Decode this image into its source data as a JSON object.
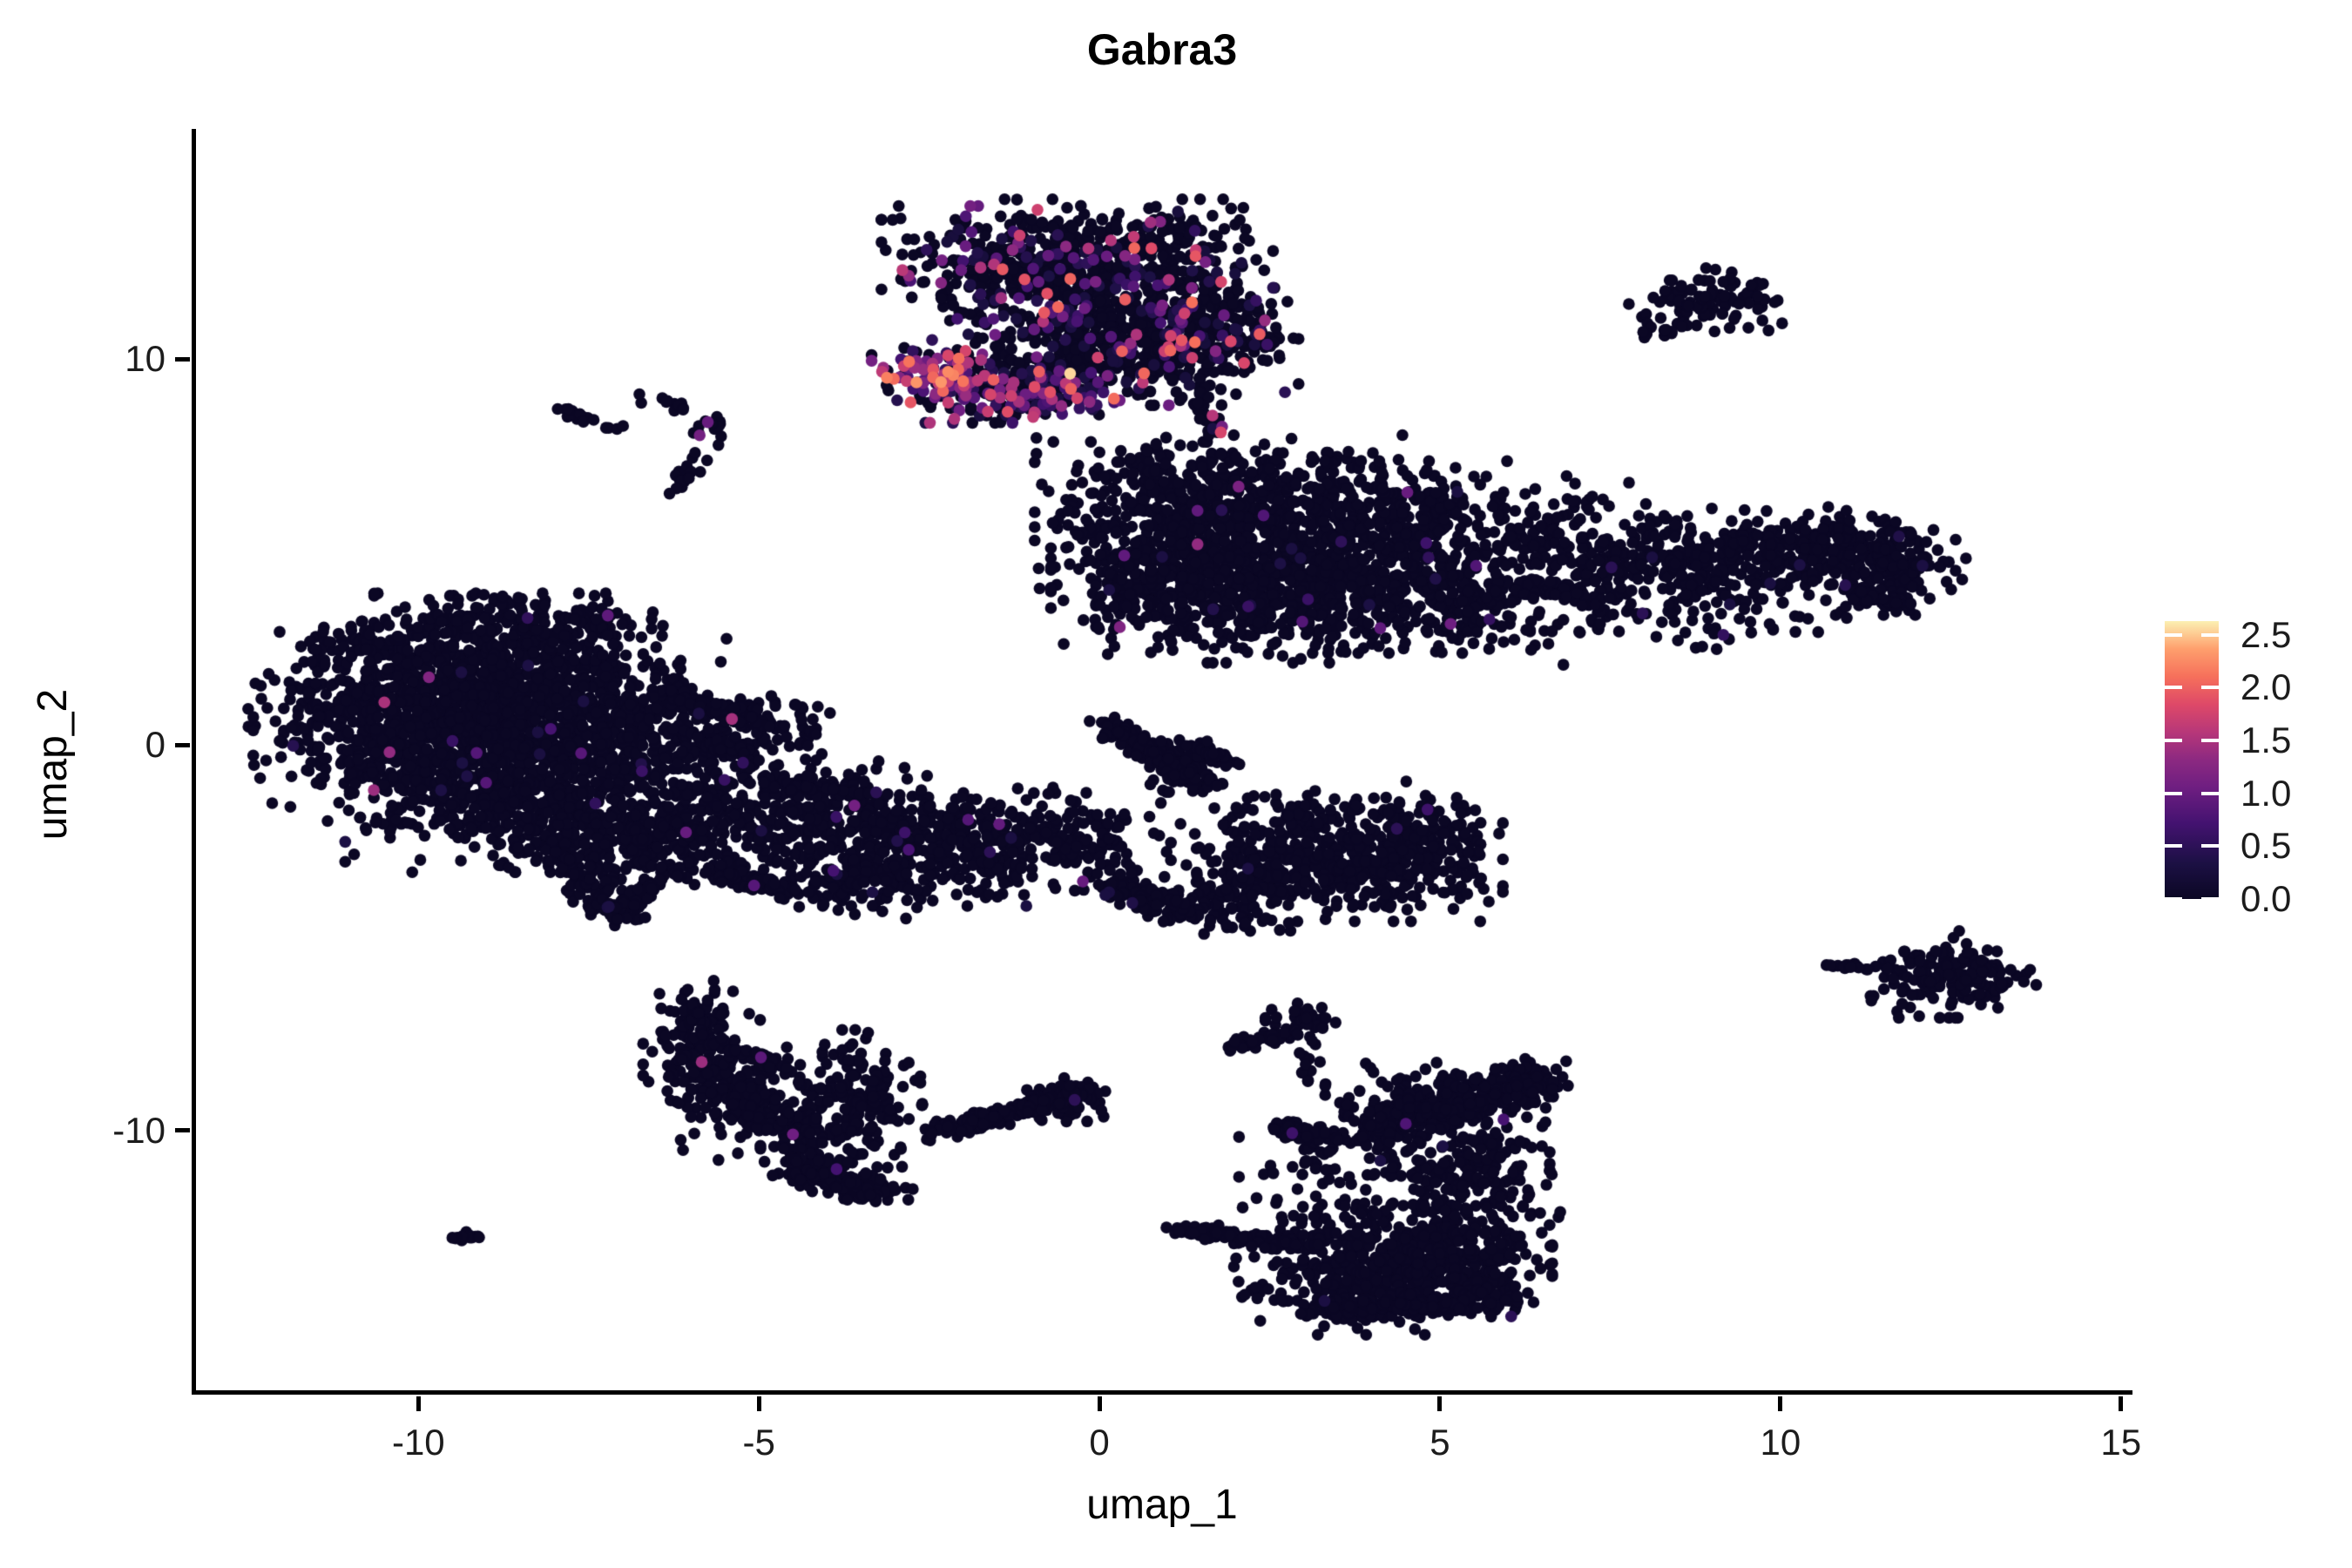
{
  "chart_data": {
    "type": "scatter",
    "title": "Gabra3",
    "xlabel": "umap_1",
    "ylabel": "umap_2",
    "x_ticks": [
      -10,
      -5,
      0,
      5,
      10,
      15
    ],
    "y_ticks": [
      -10,
      0,
      10
    ],
    "xlim": [
      -13.33,
      15.17
    ],
    "ylim": [
      -16.84,
      15.96
    ],
    "grid": false,
    "point_radius_px": 6.8,
    "legend": {
      "title": "",
      "position": "right",
      "min": 0.0,
      "max": 2.63,
      "tick_values": [
        2.5,
        2.0,
        1.5,
        1.0,
        0.5,
        0.0
      ],
      "tick_labels": [
        "2.5",
        "2.0",
        "1.5",
        "1.0",
        "0.5",
        "0.0"
      ],
      "colormap_name": "magma",
      "colormap_stops": [
        [
          0.0,
          "#0b0724"
        ],
        [
          0.13,
          "#1c1044"
        ],
        [
          0.27,
          "#431270"
        ],
        [
          0.4,
          "#6e1e81"
        ],
        [
          0.5,
          "#8c2981"
        ],
        [
          0.6,
          "#b73779"
        ],
        [
          0.7,
          "#de4968"
        ],
        [
          0.8,
          "#f6705b"
        ],
        [
          0.9,
          "#fe9f6d"
        ],
        [
          1.0,
          "#fcf0b2"
        ]
      ],
      "zero_color": "#0b0724"
    },
    "seed": 20240817,
    "clusters": [
      {
        "name": "top-middle-main",
        "colored": {
          "frac": 0.17,
          "min": 0.25,
          "max": 2.1,
          "pow": 2.6
        },
        "blobs": [
          [
            -1.4,
            12.5,
            0.8,
            0.65,
            200
          ],
          [
            0.3,
            12.9,
            1.0,
            0.55,
            220
          ],
          [
            -0.3,
            11.6,
            0.9,
            0.8,
            260
          ],
          [
            0.9,
            11.0,
            0.9,
            0.85,
            300
          ],
          [
            0.1,
            10.15,
            0.9,
            0.6,
            220
          ],
          [
            1.6,
            10.6,
            0.5,
            0.65,
            120
          ],
          [
            2.4,
            10.6,
            0.25,
            0.45,
            20
          ]
        ],
        "streaks": [
          [
            1.2,
            9.6,
            1.75,
            8.15,
            0.12,
            32
          ]
        ]
      },
      {
        "name": "top-middle-beak-hot",
        "colored": {
          "frac": 0.8,
          "min": 0.5,
          "max": 2.35,
          "pow": 1.3
        },
        "blobs": [
          [
            -2.4,
            9.75,
            0.42,
            0.33,
            90
          ]
        ]
      },
      {
        "name": "top-middle-beak-edge",
        "colored": {
          "frac": 0.5,
          "min": 0.3,
          "max": 2.0,
          "pow": 1.9
        },
        "blobs": [
          [
            -1.55,
            9.2,
            0.7,
            0.38,
            140
          ],
          [
            -0.6,
            9.05,
            0.55,
            0.33,
            90
          ]
        ]
      },
      {
        "name": "top-right-small",
        "colored": {
          "frac": 0,
          "min": 0,
          "max": 0,
          "pow": 1
        },
        "blobs": [
          [
            8.9,
            11.5,
            0.5,
            0.38,
            95
          ],
          [
            8.3,
            10.75,
            0.14,
            0.18,
            12
          ],
          [
            8.0,
            10.65,
            0.04,
            0.04,
            2
          ]
        ]
      },
      {
        "name": "right-middle-main",
        "colored": {
          "frac": 0.012,
          "min": 0.3,
          "max": 1.4,
          "pow": 2
        },
        "blobs": [
          [
            1.3,
            5.6,
            1.0,
            1.0,
            370
          ],
          [
            2.8,
            5.2,
            1.2,
            1.05,
            450
          ],
          [
            4.3,
            4.4,
            1.0,
            0.9,
            330
          ],
          [
            2.2,
            3.7,
            1.0,
            0.7,
            250
          ],
          [
            0.75,
            4.3,
            0.65,
            0.8,
            180
          ],
          [
            2.0,
            6.9,
            1.3,
            0.5,
            170
          ],
          [
            4.6,
            6.0,
            0.8,
            0.6,
            150
          ],
          [
            5.3,
            3.5,
            0.6,
            0.5,
            90
          ]
        ]
      },
      {
        "name": "right-middle-tail",
        "colored": {
          "frac": 0.008,
          "min": 0.3,
          "max": 1.2,
          "pow": 2
        },
        "blobs": [
          [
            6.3,
            4.7,
            0.8,
            0.75,
            130
          ],
          [
            7.6,
            4.4,
            0.8,
            0.65,
            120
          ],
          [
            8.8,
            4.7,
            0.7,
            0.55,
            130
          ],
          [
            9.8,
            5.0,
            0.6,
            0.5,
            110
          ],
          [
            10.8,
            5.15,
            0.6,
            0.45,
            120
          ],
          [
            11.6,
            4.6,
            0.5,
            0.55,
            150
          ],
          [
            6.9,
            5.9,
            0.5,
            0.5,
            40
          ],
          [
            7.5,
            3.2,
            1.1,
            0.5,
            40
          ],
          [
            9.3,
            3.3,
            0.8,
            0.4,
            30
          ]
        ],
        "streaks": [
          [
            11.0,
            3.95,
            11.8,
            3.55,
            0.1,
            40
          ]
        ]
      },
      {
        "name": "left-main",
        "colored": {
          "frac": 0.006,
          "min": 0.3,
          "max": 1.5,
          "pow": 2.2
        },
        "blobs": [
          [
            -9.8,
            1.5,
            1.2,
            1.05,
            400
          ],
          [
            -8.4,
            1.9,
            1.0,
            0.9,
            320
          ],
          [
            -10.4,
            0.2,
            0.9,
            1.0,
            320
          ],
          [
            -9.0,
            0.3,
            1.1,
            1.0,
            370
          ],
          [
            -7.5,
            0.8,
            0.9,
            0.9,
            280
          ],
          [
            -7.0,
            -0.3,
            0.9,
            0.8,
            220
          ],
          [
            -8.6,
            -1.5,
            1.1,
            0.8,
            290
          ],
          [
            -7.2,
            -2.2,
            0.9,
            0.7,
            200
          ],
          [
            -6.6,
            -2.6,
            0.6,
            0.5,
            90
          ],
          [
            -4.9,
            0.4,
            0.45,
            0.5,
            70
          ],
          [
            -8.9,
            3.3,
            0.6,
            0.3,
            60
          ],
          [
            -7.7,
            3.0,
            0.5,
            0.3,
            50
          ],
          [
            -10.6,
            2.6,
            0.5,
            0.35,
            70
          ]
        ],
        "streaks": [
          [
            -6.4,
            1.3,
            -5.0,
            0.6,
            0.18,
            80
          ],
          [
            -6.2,
            0.3,
            -5.2,
            -0.2,
            0.15,
            50
          ],
          [
            -7.9,
            -2.8,
            -7.1,
            -4.5,
            0.18,
            90
          ],
          [
            -7.1,
            -4.5,
            -6.3,
            -3.2,
            0.15,
            70
          ]
        ]
      },
      {
        "name": "middle-band",
        "colored": {
          "frac": 0.012,
          "min": 0.3,
          "max": 1.1,
          "pow": 2
        },
        "blobs": [
          [
            -5.3,
            -1.6,
            0.9,
            0.8,
            200
          ],
          [
            -4.0,
            -2.2,
            0.9,
            0.8,
            200
          ],
          [
            -2.7,
            -2.6,
            0.9,
            0.7,
            220
          ],
          [
            -1.4,
            -2.6,
            0.8,
            0.6,
            160
          ],
          [
            -0.3,
            -2.3,
            0.6,
            0.55,
            90
          ],
          [
            -3.4,
            -3.6,
            0.6,
            0.4,
            80
          ]
        ],
        "streaks": [
          [
            -4.8,
            -0.9,
            -3.4,
            -1.3,
            0.15,
            60
          ],
          [
            -5.6,
            -3.2,
            -4.3,
            -3.9,
            0.15,
            70
          ]
        ]
      },
      {
        "name": "center-diagonal-streak",
        "colored": {
          "frac": 0,
          "min": 0,
          "max": 0,
          "pow": 1
        },
        "blobs": [
          [
            1.1,
            -0.55,
            0.35,
            0.3,
            40
          ],
          [
            0.25,
            -2.0,
            0.12,
            0.12,
            6
          ]
        ],
        "streaks": [
          [
            0.0,
            0.65,
            1.62,
            -1.1,
            0.13,
            160
          ],
          [
            1.38,
            -0.02,
            1.85,
            -0.45,
            0.1,
            45
          ]
        ]
      },
      {
        "name": "center-right-blob",
        "colored": {
          "frac": 0.006,
          "min": 0.3,
          "max": 1.0,
          "pow": 2
        },
        "blobs": [
          [
            2.6,
            -2.9,
            0.8,
            0.7,
            200
          ],
          [
            3.9,
            -3.0,
            0.9,
            0.7,
            250
          ],
          [
            4.8,
            -2.7,
            0.5,
            0.5,
            110
          ],
          [
            3.4,
            -1.85,
            1.0,
            0.4,
            60
          ],
          [
            1.9,
            -4.0,
            0.5,
            0.4,
            70
          ]
        ],
        "streaks": [
          [
            0.15,
            -3.55,
            1.35,
            -4.5,
            0.18,
            110
          ]
        ]
      },
      {
        "name": "bottom-left-hook",
        "colored": {
          "frac": 0.004,
          "min": 0.5,
          "max": 1.2,
          "pow": 1.5
        },
        "blobs": [
          [
            -5.92,
            -7.2,
            0.24,
            0.5,
            70
          ],
          [
            -5.8,
            -8.3,
            0.4,
            0.6,
            120
          ],
          [
            -3.5,
            -9.3,
            0.4,
            0.85,
            150
          ],
          [
            -4.6,
            -9.3,
            0.7,
            0.7,
            80
          ]
        ],
        "streaks": [
          [
            -5.5,
            -8.8,
            -4.3,
            -10.3,
            0.3,
            160
          ],
          [
            -4.5,
            -10.8,
            -3.2,
            -11.7,
            0.22,
            180
          ],
          [
            -5.3,
            -7.9,
            -4.6,
            -8.4,
            0.12,
            25
          ]
        ]
      },
      {
        "name": "bottom-middle-dash",
        "colored": {
          "frac": 0.005,
          "min": 0.3,
          "max": 1.0,
          "pow": 2
        },
        "blobs": [
          [
            -0.5,
            -9.2,
            0.3,
            0.25,
            60
          ]
        ],
        "streaks": [
          [
            -2.5,
            -10.1,
            -0.25,
            -8.95,
            0.13,
            170
          ]
        ]
      },
      {
        "name": "bottom-right-main",
        "colored": {
          "frac": 0.003,
          "min": 0.3,
          "max": 1.0,
          "pow": 2
        },
        "blobs": [
          [
            3.0,
            -7.15,
            0.25,
            0.2,
            35
          ],
          [
            3.1,
            -8.35,
            0.12,
            0.3,
            12
          ],
          [
            5.0,
            -9.3,
            0.8,
            0.5,
            150
          ],
          [
            6.3,
            -8.7,
            0.3,
            0.25,
            60
          ],
          [
            3.3,
            -10.8,
            0.18,
            0.4,
            20
          ],
          [
            4.3,
            -11.3,
            1.0,
            0.9,
            160
          ],
          [
            5.6,
            -11.0,
            0.45,
            0.6,
            110
          ],
          [
            4.0,
            -13.6,
            0.9,
            0.75,
            380
          ],
          [
            5.3,
            -13.3,
            0.6,
            0.6,
            170
          ],
          [
            5.7,
            -14.2,
            0.3,
            0.3,
            60
          ],
          [
            6.3,
            -12.2,
            0.4,
            0.5,
            25
          ]
        ],
        "streaks": [
          [
            1.95,
            -7.75,
            2.85,
            -7.45,
            0.1,
            45
          ],
          [
            4.0,
            -9.95,
            6.2,
            -8.75,
            0.3,
            220
          ],
          [
            2.55,
            -9.9,
            3.45,
            -10.15,
            0.12,
            70
          ],
          [
            1.15,
            -12.55,
            3.1,
            -13.0,
            0.1,
            130
          ],
          [
            3.2,
            -14.6,
            5.2,
            -14.5,
            0.18,
            120
          ]
        ]
      },
      {
        "name": "tiny-bottom-left-dash",
        "colored": {
          "frac": 0,
          "min": 0,
          "max": 0,
          "pow": 1
        },
        "streaks": [
          [
            -9.45,
            -12.82,
            -9.05,
            -12.65,
            0.06,
            14
          ]
        ]
      },
      {
        "name": "right-small-cluster",
        "colored": {
          "frac": 0,
          "min": 0,
          "max": 0,
          "pow": 1
        },
        "blobs": [
          [
            12.25,
            -5.95,
            0.42,
            0.5,
            120
          ],
          [
            12.95,
            -6.0,
            0.4,
            0.3,
            50
          ],
          [
            11.35,
            -5.72,
            0.03,
            0.03,
            1
          ],
          [
            11.6,
            -5.8,
            0.03,
            0.03,
            1
          ]
        ],
        "streaks": [
          [
            10.68,
            -5.7,
            11.2,
            -5.75,
            0.05,
            18
          ]
        ]
      },
      {
        "name": "sparse-upper-left-group",
        "colored": {
          "frac": 0,
          "min": 0,
          "max": 0,
          "pow": 1
        },
        "blobs": [
          [
            -6.35,
            8.9,
            0.18,
            0.15,
            10
          ],
          [
            -5.72,
            8.2,
            0.16,
            0.2,
            12
          ],
          [
            -6.05,
            6.95,
            0.18,
            0.2,
            14
          ],
          [
            -6.1,
            8.7,
            0.03,
            0.03,
            1
          ],
          [
            -6.0,
            7.45,
            0.03,
            0.03,
            1
          ],
          [
            -5.9,
            7.6,
            0.03,
            0.03,
            1
          ],
          [
            -6.3,
            6.5,
            0.03,
            0.03,
            1
          ]
        ],
        "streaks": [
          [
            -7.85,
            8.62,
            -7.42,
            8.33,
            0.07,
            16
          ],
          [
            -7.3,
            8.22,
            -6.98,
            8.2,
            0.04,
            4
          ]
        ]
      }
    ],
    "extra_points": [
      [
        -0.43,
        9.62,
        2.55
      ],
      [
        -2.03,
        12.3,
        1.0
      ],
      [
        -10.5,
        1.1,
        1.5
      ],
      [
        -9.5,
        0.1,
        0.6
      ],
      [
        -2.8,
        -2.72,
        0.75
      ],
      [
        -5.87,
        8.02,
        1.1
      ],
      [
        -5.75,
        8.36,
        1.0
      ],
      [
        -5.84,
        -8.22,
        1.4
      ],
      [
        -4.97,
        -8.1,
        0.9
      ],
      [
        4.5,
        -9.82,
        0.8
      ],
      [
        0.3,
        3.05,
        1.2
      ]
    ]
  }
}
